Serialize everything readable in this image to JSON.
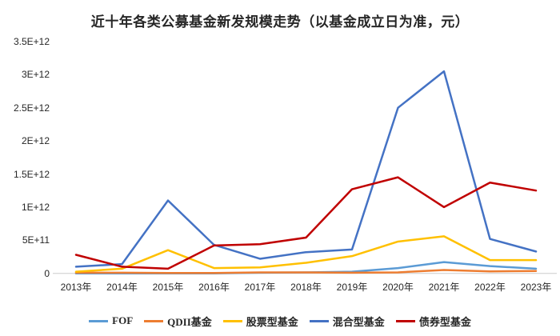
{
  "chart_data": {
    "type": "line",
    "title": "近十年各类公募基金新发规模走势（以基金成立日为准，元）",
    "categories": [
      "2013年",
      "2014年",
      "2015年",
      "2016年",
      "2017年",
      "2018年",
      "2019年",
      "2020年",
      "2021年",
      "2022年",
      "2023年"
    ],
    "y_axis": {
      "ticks": [
        {
          "label": "0",
          "value": 0
        },
        {
          "label": "5E+11",
          "value": 500000000000.0
        },
        {
          "label": "1E+12",
          "value": 1000000000000.0
        },
        {
          "label": "1.5E+12",
          "value": 1500000000000.0
        },
        {
          "label": "2E+12",
          "value": 2000000000000.0
        },
        {
          "label": "2.5E+12",
          "value": 2500000000000.0
        },
        {
          "label": "3E+12",
          "value": 3000000000000.0
        },
        {
          "label": "3.5E+12",
          "value": 3500000000000.0
        }
      ],
      "range": [
        0,
        3500000000000.0
      ],
      "gridlines": false
    },
    "legend_position": "bottom",
    "series": [
      {
        "name": "FOF",
        "color": "#5B9BD5",
        "values": [
          0,
          0,
          0,
          0,
          10000000000.0,
          15000000000.0,
          25000000000.0,
          80000000000.0,
          170000000000.0,
          110000000000.0,
          70000000000.0
        ]
      },
      {
        "name": "QDII基金",
        "color": "#ED7D31",
        "values": [
          10000000000.0,
          10000000000.0,
          5000000000.0,
          5000000000.0,
          15000000000.0,
          15000000000.0,
          10000000000.0,
          15000000000.0,
          50000000000.0,
          30000000000.0,
          35000000000.0
        ]
      },
      {
        "name": "股票型基金",
        "color": "#FFC000",
        "values": [
          25000000000.0,
          70000000000.0,
          350000000000.0,
          80000000000.0,
          90000000000.0,
          160000000000.0,
          260000000000.0,
          480000000000.0,
          560000000000.0,
          200000000000.0,
          200000000000.0
        ]
      },
      {
        "name": "混合型基金",
        "color": "#4472C4",
        "values": [
          100000000000.0,
          140000000000.0,
          1100000000000.0,
          430000000000.0,
          220000000000.0,
          320000000000.0,
          360000000000.0,
          2500000000000.0,
          3050000000000.0,
          520000000000.0,
          330000000000.0
        ]
      },
      {
        "name": "债券型基金",
        "color": "#C00000",
        "values": [
          280000000000.0,
          100000000000.0,
          70000000000.0,
          420000000000.0,
          440000000000.0,
          540000000000.0,
          1270000000000.0,
          1450000000000.0,
          1000000000000.0,
          1370000000000.0,
          1250000000000.0
        ]
      }
    ],
    "axis_line_color": "#D9D9D9"
  }
}
